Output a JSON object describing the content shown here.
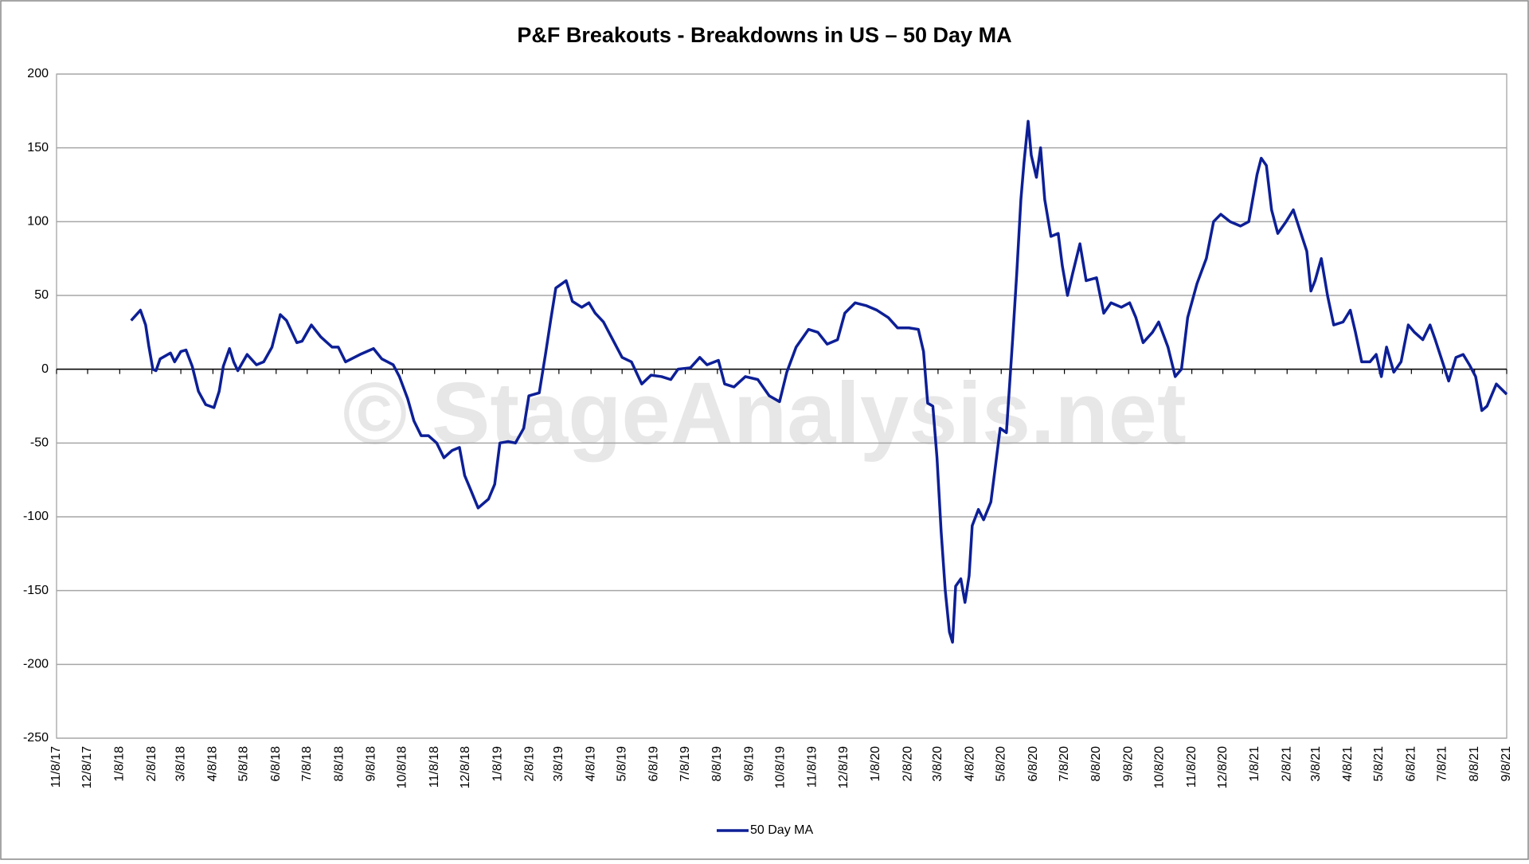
{
  "chart_data": {
    "type": "line",
    "title": "P&F Breakouts - Breakdowns in US – 50 Day MA",
    "watermark": "© StageAnalysis.net",
    "ylim": [
      -250,
      200
    ],
    "yticks": [
      -250,
      -200,
      -150,
      -100,
      -50,
      0,
      50,
      100,
      150,
      200
    ],
    "xlim": [
      "11/8/17",
      "9/8/21"
    ],
    "xticks": [
      "11/8/17",
      "12/8/17",
      "1/8/18",
      "2/8/18",
      "3/8/18",
      "4/8/18",
      "5/8/18",
      "6/8/18",
      "7/8/18",
      "8/8/18",
      "9/8/18",
      "10/8/18",
      "11/8/18",
      "12/8/18",
      "1/8/19",
      "2/8/19",
      "3/8/19",
      "4/8/19",
      "5/8/19",
      "6/8/19",
      "7/8/19",
      "8/8/19",
      "9/8/19",
      "10/8/19",
      "11/8/19",
      "12/8/19",
      "1/8/20",
      "2/8/20",
      "3/8/20",
      "4/8/20",
      "5/8/20",
      "6/8/20",
      "7/8/20",
      "8/8/20",
      "9/8/20",
      "10/8/20",
      "11/8/20",
      "12/8/20",
      "1/8/21",
      "2/8/21",
      "3/8/21",
      "4/8/21",
      "5/8/21",
      "6/8/21",
      "7/8/21",
      "8/8/21",
      "9/8/21"
    ],
    "grid": true,
    "x": [
      "1/19/18",
      "1/28/18",
      "2/2/18",
      "2/5/18",
      "2/9/18",
      "2/12/18",
      "2/16/18",
      "2/26/18",
      "3/2/18",
      "3/8/18",
      "3/13/18",
      "3/19/18",
      "3/25/18",
      "4/1/18",
      "4/9/18",
      "4/14/18",
      "4/18/18",
      "4/24/18",
      "4/28/18",
      "5/2/18",
      "5/11/18",
      "5/20/18",
      "5/27/18",
      "6/4/18",
      "6/12/18",
      "6/18/18",
      "6/28/18",
      "7/3/18",
      "7/12/18",
      "7/21/18",
      "8/1/18",
      "8/7/18",
      "8/14/18",
      "8/28/18",
      "9/10/18",
      "9/18/18",
      "9/29/18",
      "10/5/18",
      "10/13/18",
      "10/19/18",
      "10/26/18",
      "11/2/18",
      "11/10/18",
      "11/17/18",
      "11/25/18",
      "12/2/18",
      "12/7/18",
      "12/13/18",
      "12/20/18",
      "12/30/18",
      "1/5/19",
      "1/10/19",
      "1/18/19",
      "1/25/19",
      "2/2/19",
      "2/7/19",
      "2/17/19",
      "2/23/19",
      "2/28/19",
      "3/5/19",
      "3/15/19",
      "3/21/19",
      "3/30/19",
      "4/6/19",
      "4/12/19",
      "4/20/19",
      "4/29/19",
      "5/8/19",
      "5/17/19",
      "5/27/19",
      "6/5/19",
      "6/15/19",
      "6/24/19",
      "7/1/19",
      "7/13/19",
      "7/22/19",
      "7/29/19",
      "8/9/19",
      "8/15/19",
      "8/24/19",
      "9/4/19",
      "9/16/19",
      "9/27/19",
      "10/7/19",
      "10/14/19",
      "10/23/19",
      "11/4/19",
      "11/13/19",
      "11/22/19",
      "12/2/19",
      "12/9/19",
      "12/19/19",
      "12/30/19",
      "1/9/20",
      "1/20/20",
      "1/29/20",
      "2/9/20",
      "2/18/20",
      "2/23/20",
      "2/27/20",
      "3/3/20",
      "3/7/20",
      "3/11/20",
      "3/15/20",
      "3/19/20",
      "3/22/20",
      "3/25/20",
      "3/30/20",
      "4/3/20",
      "4/7/20",
      "4/10/20",
      "4/16/20",
      "4/21/20",
      "4/28/20",
      "5/2/20",
      "5/7/20",
      "5/13/20",
      "5/19/20",
      "5/23/20",
      "5/27/20",
      "5/30/20",
      "6/3/20",
      "6/6/20",
      "6/11/20",
      "6/15/20",
      "6/19/20",
      "6/25/20",
      "7/2/20",
      "7/6/20",
      "7/11/20",
      "7/16/20",
      "7/23/20",
      "7/29/20",
      "8/8/20",
      "8/15/20",
      "8/22/20",
      "9/1/20",
      "9/9/20",
      "9/15/20",
      "9/22/20",
      "10/1/20",
      "10/7/20",
      "10/16/20",
      "10/23/20",
      "10/29/20",
      "11/4/20",
      "11/13/20",
      "11/22/20",
      "11/29/20",
      "12/6/20",
      "12/15/20",
      "12/25/20",
      "1/2/21",
      "1/10/21",
      "1/14/21",
      "1/19/21",
      "1/24/21",
      "1/30/21",
      "2/7/21",
      "2/14/21",
      "2/20/21",
      "2/27/21",
      "3/3/21",
      "3/7/21",
      "3/13/21",
      "3/19/21",
      "3/25/21",
      "4/3/21",
      "4/10/21",
      "4/15/21",
      "4/21/21",
      "4/29/21",
      "5/5/21",
      "5/10/21",
      "5/15/21",
      "5/22/21",
      "5/29/21",
      "6/5/21",
      "6/11/21",
      "6/19/21",
      "6/26/21",
      "7/1/21",
      "7/8/21",
      "7/14/21",
      "7/21/21",
      "7/28/21",
      "8/3/21",
      "8/9/21",
      "8/15/21",
      "8/20/21",
      "8/29/21",
      "9/8/21"
    ],
    "series": [
      {
        "name": "50 Day MA",
        "color": "#0d1f96",
        "values": [
          33,
          40,
          30,
          16,
          0,
          -1,
          7,
          11,
          5,
          12,
          13,
          2,
          -15,
          -24,
          -26,
          -15,
          2,
          14,
          5,
          -1,
          10,
          3,
          5,
          15,
          37,
          33,
          18,
          19,
          30,
          22,
          15,
          15,
          5,
          10,
          14,
          7,
          3,
          -5,
          -20,
          -35,
          -45,
          -45,
          -50,
          -60,
          -55,
          -53,
          -72,
          -82,
          -94,
          -88,
          -78,
          -50,
          -49,
          -50,
          -40,
          -18,
          -16,
          10,
          33,
          55,
          60,
          46,
          42,
          45,
          38,
          32,
          20,
          8,
          5,
          -10,
          -4,
          -5,
          -7,
          0,
          1,
          8,
          3,
          6,
          -10,
          -12,
          -5,
          -7,
          -18,
          -22,
          -2,
          15,
          27,
          25,
          17,
          20,
          38,
          45,
          43,
          40,
          35,
          28,
          28,
          27,
          12,
          -23,
          -25,
          -60,
          -110,
          -150,
          -178,
          -185,
          -147,
          -142,
          -158,
          -140,
          -106,
          -95,
          -102,
          -90,
          -68,
          -40,
          -43,
          20,
          65,
          115,
          140,
          168,
          145,
          130,
          150,
          115,
          90,
          92,
          70,
          50,
          65,
          85,
          60,
          62,
          38,
          45,
          42,
          45,
          35,
          18,
          25,
          32,
          15,
          -5,
          0,
          35,
          58,
          75,
          100,
          105,
          100,
          97,
          100,
          132,
          143,
          138,
          108,
          92,
          100,
          108,
          95,
          80,
          53,
          60,
          75,
          50,
          30,
          32,
          40,
          25,
          5,
          5,
          10,
          -5,
          15,
          -2,
          5,
          30,
          25,
          20,
          30,
          20,
          5,
          -8,
          8,
          10,
          3,
          -5,
          -28,
          -25,
          -10,
          -17
        ]
      }
    ]
  }
}
